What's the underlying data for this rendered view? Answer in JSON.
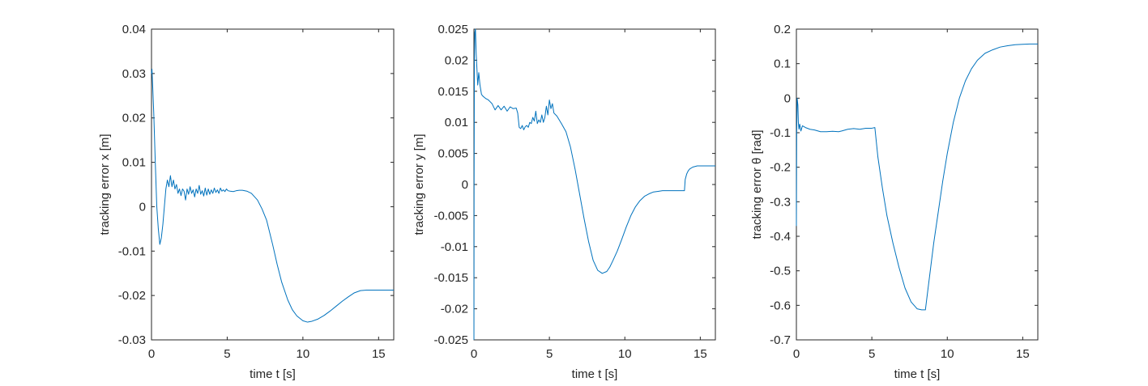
{
  "chart_data": [
    {
      "type": "line",
      "title": "",
      "xlabel": "time t [s]",
      "ylabel": "tracking error x [m]",
      "xlim": [
        0,
        16
      ],
      "ylim": [
        -0.03,
        0.04
      ],
      "xticks": [
        0,
        5,
        10,
        15
      ],
      "xtick_labels": [
        "0",
        "5",
        "10",
        "15"
      ],
      "yticks": [
        -0.03,
        -0.02,
        -0.01,
        0,
        0.01,
        0.02,
        0.03,
        0.04
      ],
      "ytick_labels": [
        "-0.03",
        "-0.02",
        "-0.01",
        "0",
        "0.01",
        "0.02",
        "0.03",
        "0.04"
      ],
      "grid": false,
      "line_color": "#0072BD",
      "series": [
        {
          "x": [
            0,
            0.03,
            0.08,
            0.15,
            0.25,
            0.35,
            0.45,
            0.55,
            0.65,
            0.75,
            0.85,
            0.95,
            1.05,
            1.15,
            1.25,
            1.35,
            1.45,
            1.55,
            1.65,
            1.75,
            1.85,
            1.95,
            2.05,
            2.15,
            2.25,
            2.35,
            2.45,
            2.55,
            2.65,
            2.75,
            2.85,
            2.95,
            3.05,
            3.15,
            3.25,
            3.35,
            3.45,
            3.55,
            3.65,
            3.75,
            3.85,
            3.95,
            4.05,
            4.15,
            4.25,
            4.35,
            4.45,
            4.55,
            4.65,
            4.75,
            4.85,
            4.95,
            5.05,
            5.2,
            5.4,
            5.6,
            5.8,
            6.0,
            6.3,
            6.6,
            7.0,
            7.3,
            7.6,
            8.0,
            8.3,
            8.6,
            9.0,
            9.3,
            9.6,
            10.0,
            10.3,
            10.6,
            11.0,
            11.4,
            11.8,
            12.2,
            12.6,
            13.0,
            13.4,
            13.8,
            14.2,
            14.6,
            15.0,
            15.5,
            16.0
          ],
          "y": [
            0.03,
            0.031,
            0.027,
            0.021,
            0.01,
            0.0,
            -0.005,
            -0.0085,
            -0.007,
            -0.004,
            0.0,
            0.004,
            0.006,
            0.0045,
            0.007,
            0.0045,
            0.006,
            0.004,
            0.005,
            0.003,
            0.004,
            0.0025,
            0.004,
            0.0035,
            0.0015,
            0.004,
            0.0028,
            0.0045,
            0.003,
            0.0038,
            0.0022,
            0.004,
            0.003,
            0.0048,
            0.0028,
            0.0036,
            0.0024,
            0.0042,
            0.0026,
            0.004,
            0.0028,
            0.0038,
            0.003,
            0.0042,
            0.0032,
            0.0038,
            0.003,
            0.0042,
            0.0035,
            0.0038,
            0.0034,
            0.004,
            0.0036,
            0.0035,
            0.0034,
            0.0036,
            0.0037,
            0.0037,
            0.0035,
            0.003,
            0.0015,
            -0.0005,
            -0.003,
            -0.0085,
            -0.013,
            -0.017,
            -0.021,
            -0.0232,
            -0.0246,
            -0.0257,
            -0.026,
            -0.0258,
            -0.0253,
            -0.0245,
            -0.0235,
            -0.0224,
            -0.0213,
            -0.0203,
            -0.0194,
            -0.0189,
            -0.0188,
            -0.0188,
            -0.0188,
            -0.0188,
            -0.0188
          ]
        }
      ]
    },
    {
      "type": "line",
      "title": "",
      "xlabel": "time t [s]",
      "ylabel": "tracking error y [m]",
      "xlim": [
        0,
        16
      ],
      "ylim": [
        -0.025,
        0.025
      ],
      "xticks": [
        0,
        5,
        10,
        15
      ],
      "xtick_labels": [
        "0",
        "5",
        "10",
        "15"
      ],
      "yticks": [
        -0.025,
        -0.02,
        -0.015,
        -0.01,
        -0.005,
        0,
        0.005,
        0.01,
        0.015,
        0.02,
        0.025
      ],
      "ytick_labels": [
        "-0.025",
        "-0.02",
        "-0.015",
        "-0.01",
        "-0.005",
        "0",
        "0.005",
        "0.01",
        "0.015",
        "0.02",
        "0.025"
      ],
      "grid": false,
      "line_color": "#0072BD",
      "series": [
        {
          "x": [
            0,
            0.01,
            0.03,
            0.06,
            0.1,
            0.15,
            0.2,
            0.25,
            0.32,
            0.4,
            0.5,
            0.6,
            0.7,
            0.8,
            0.9,
            1.0,
            1.2,
            1.4,
            1.6,
            1.8,
            2.0,
            2.2,
            2.4,
            2.6,
            2.8,
            2.9,
            3.0,
            3.1,
            3.2,
            3.3,
            3.4,
            3.5,
            3.6,
            3.7,
            3.8,
            3.9,
            4.0,
            4.1,
            4.2,
            4.3,
            4.4,
            4.5,
            4.6,
            4.7,
            4.8,
            4.9,
            5.0,
            5.1,
            5.2,
            5.3,
            5.5,
            5.8,
            6.1,
            6.4,
            6.7,
            7.0,
            7.3,
            7.6,
            7.9,
            8.2,
            8.5,
            8.8,
            9.0,
            9.2,
            9.5,
            9.8,
            10.1,
            10.4,
            10.7,
            11.0,
            11.3,
            11.6,
            11.9,
            12.2,
            12.5,
            12.8,
            13.1,
            13.4,
            13.7,
            13.95,
            14.0,
            14.1,
            14.2,
            14.3,
            14.5,
            14.8,
            15.2,
            15.6,
            16.0
          ],
          "y": [
            -0.025,
            0.0,
            0.02,
            0.0245,
            0.025,
            0.021,
            0.0185,
            0.016,
            0.018,
            0.016,
            0.0145,
            0.0142,
            0.014,
            0.0138,
            0.0137,
            0.0135,
            0.013,
            0.012,
            0.0127,
            0.012,
            0.0126,
            0.0118,
            0.0125,
            0.0122,
            0.0123,
            0.0115,
            0.0092,
            0.009,
            0.0095,
            0.0088,
            0.0093,
            0.0095,
            0.0092,
            0.01,
            0.0098,
            0.0108,
            0.0102,
            0.0118,
            0.0098,
            0.0104,
            0.01,
            0.0112,
            0.01,
            0.0108,
            0.0126,
            0.0112,
            0.0136,
            0.0122,
            0.013,
            0.0115,
            0.011,
            0.0098,
            0.0085,
            0.006,
            0.0025,
            -0.0015,
            -0.0055,
            -0.0092,
            -0.0122,
            -0.0138,
            -0.0143,
            -0.014,
            -0.0133,
            -0.0123,
            -0.0107,
            -0.0088,
            -0.0068,
            -0.005,
            -0.0036,
            -0.0026,
            -0.0019,
            -0.0015,
            -0.0012,
            -0.0011,
            -0.001,
            -0.001,
            -0.001,
            -0.001,
            -0.001,
            -0.001,
            0.0008,
            0.0017,
            0.0022,
            0.0025,
            0.0028,
            0.003,
            0.003,
            0.003,
            0.003
          ]
        }
      ]
    },
    {
      "type": "line",
      "title": "",
      "xlabel": "time t [s]",
      "ylabel": "tracking error θ [rad]",
      "xlim": [
        0,
        16
      ],
      "ylim": [
        -0.7,
        0.2
      ],
      "xticks": [
        0,
        5,
        10,
        15
      ],
      "xtick_labels": [
        "0",
        "5",
        "10",
        "15"
      ],
      "yticks": [
        -0.7,
        -0.6,
        -0.5,
        -0.4,
        -0.3,
        -0.2,
        -0.1,
        0,
        0.1,
        0.2
      ],
      "ytick_labels": [
        "-0.7",
        "-0.6",
        "-0.5",
        "-0.4",
        "-0.3",
        "-0.2",
        "-0.1",
        "0",
        "0.1",
        "0.2"
      ],
      "grid": false,
      "line_color": "#0072BD",
      "series": [
        {
          "x": [
            0,
            0.02,
            0.05,
            0.1,
            0.13,
            0.17,
            0.22,
            0.3,
            0.4,
            0.6,
            0.9,
            1.2,
            1.6,
            2.0,
            2.4,
            2.8,
            3.0,
            3.4,
            3.8,
            4.2,
            4.6,
            5.0,
            5.2,
            5.4,
            5.7,
            6.0,
            6.4,
            6.8,
            7.2,
            7.6,
            8.0,
            8.3,
            8.55,
            8.7,
            8.9,
            9.1,
            9.4,
            9.7,
            10.0,
            10.4,
            10.8,
            11.2,
            11.6,
            12.0,
            12.5,
            13.0,
            13.5,
            14.0,
            14.5,
            15.0,
            15.5,
            16.0
          ],
          "y": [
            -0.37,
            -0.1,
            0.0,
            -0.02,
            -0.07,
            -0.09,
            -0.075,
            -0.095,
            -0.08,
            -0.085,
            -0.09,
            -0.092,
            -0.097,
            -0.097,
            -0.096,
            -0.097,
            -0.095,
            -0.09,
            -0.088,
            -0.09,
            -0.087,
            -0.087,
            -0.085,
            -0.17,
            -0.26,
            -0.34,
            -0.42,
            -0.49,
            -0.55,
            -0.59,
            -0.61,
            -0.613,
            -0.613,
            -0.56,
            -0.49,
            -0.42,
            -0.33,
            -0.24,
            -0.16,
            -0.07,
            0.0,
            0.05,
            0.085,
            0.11,
            0.13,
            0.14,
            0.148,
            0.152,
            0.155,
            0.156,
            0.157,
            0.157
          ]
        }
      ]
    }
  ]
}
